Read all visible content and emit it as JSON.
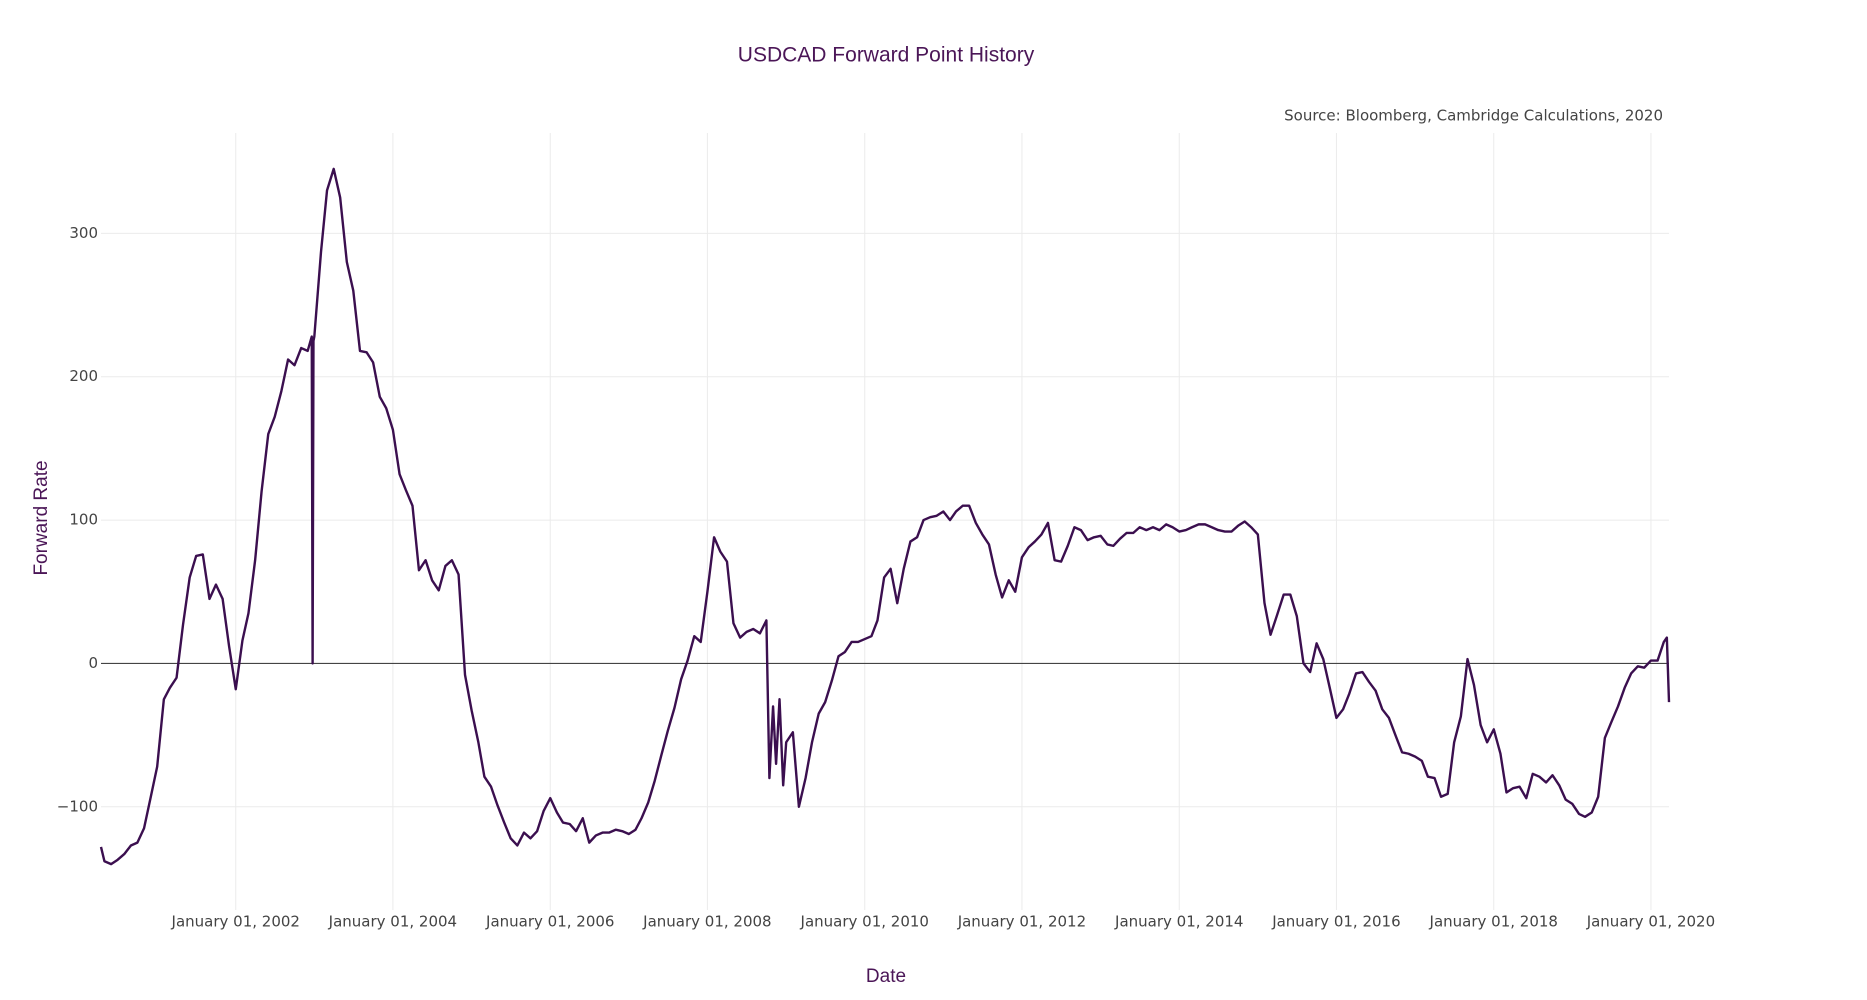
{
  "chart_data": {
    "type": "line",
    "title": "USDCAD Forward Point History",
    "annotation": "Source: Bloomberg, Cambridge Calculations, 2020",
    "x_label": "Date",
    "y_label": "Forward Rate",
    "color": "#3b0f4f",
    "grid": true,
    "zeroline": true,
    "xlim": [
      "2000-04-15",
      "2020-03-25"
    ],
    "ylim": [
      -172,
      370
    ],
    "yticks": [
      {
        "value": -100,
        "label": "−100"
      },
      0,
      100,
      200,
      300
    ],
    "xticks": [
      {
        "value": "2002-01-01",
        "label": "January 01, 2002"
      },
      {
        "value": "2004-01-01",
        "label": "January 01, 2004"
      },
      {
        "value": "2006-01-01",
        "label": "January 01, 2006"
      },
      {
        "value": "2008-01-01",
        "label": "January 01, 2008"
      },
      {
        "value": "2010-01-01",
        "label": "January 01, 2010"
      },
      {
        "value": "2012-01-01",
        "label": "January 01, 2012"
      },
      {
        "value": "2014-01-01",
        "label": "January 01, 2014"
      },
      {
        "value": "2016-01-01",
        "label": "January 01, 2016"
      },
      {
        "value": "2018-01-01",
        "label": "January 01, 2018"
      },
      {
        "value": "2020-01-01",
        "label": "January 01, 2020"
      }
    ],
    "x": [
      "2000-04-15",
      "2000-05-01",
      "2000-06-01",
      "2000-07-01",
      "2000-08-01",
      "2000-09-01",
      "2000-10-01",
      "2000-11-01",
      "2000-12-01",
      "2001-01-01",
      "2001-02-01",
      "2001-03-01",
      "2001-04-01",
      "2001-05-01",
      "2001-06-01",
      "2001-07-01",
      "2001-08-01",
      "2001-09-01",
      "2001-10-01",
      "2001-11-01",
      "2001-12-01",
      "2002-01-01",
      "2002-02-01",
      "2002-03-01",
      "2002-04-01",
      "2002-05-01",
      "2002-06-01",
      "2002-07-01",
      "2002-08-01",
      "2002-09-01",
      "2002-10-01",
      "2002-11-01",
      "2002-12-01",
      "2002-12-20",
      "2002-12-24",
      "2002-12-28",
      "2003-01-01",
      "2003-02-01",
      "2003-03-01",
      "2003-04-01",
      "2003-05-01",
      "2003-06-01",
      "2003-07-01",
      "2003-08-01",
      "2003-09-01",
      "2003-10-01",
      "2003-11-01",
      "2003-12-01",
      "2004-01-01",
      "2004-02-01",
      "2004-03-01",
      "2004-04-01",
      "2004-05-01",
      "2004-06-01",
      "2004-07-01",
      "2004-08-01",
      "2004-09-01",
      "2004-10-01",
      "2004-11-01",
      "2004-12-01",
      "2005-01-01",
      "2005-02-01",
      "2005-03-01",
      "2005-04-01",
      "2005-05-01",
      "2005-06-01",
      "2005-07-01",
      "2005-08-01",
      "2005-09-01",
      "2005-10-01",
      "2005-11-01",
      "2005-12-01",
      "2006-01-01",
      "2006-02-01",
      "2006-03-01",
      "2006-04-01",
      "2006-05-01",
      "2006-06-01",
      "2006-07-01",
      "2006-08-01",
      "2006-09-01",
      "2006-10-01",
      "2006-11-01",
      "2006-12-01",
      "2007-01-01",
      "2007-02-01",
      "2007-03-01",
      "2007-04-01",
      "2007-05-01",
      "2007-06-01",
      "2007-07-01",
      "2007-08-01",
      "2007-09-01",
      "2007-10-01",
      "2007-11-01",
      "2007-12-01",
      "2008-01-01",
      "2008-02-01",
      "2008-03-01",
      "2008-04-01",
      "2008-05-01",
      "2008-06-01",
      "2008-07-01",
      "2008-08-01",
      "2008-09-01",
      "2008-10-01",
      "2008-10-15",
      "2008-11-01",
      "2008-11-15",
      "2008-12-01",
      "2008-12-18",
      "2009-01-01",
      "2009-02-01",
      "2009-03-01",
      "2009-04-01",
      "2009-05-01",
      "2009-06-01",
      "2009-07-01",
      "2009-08-01",
      "2009-09-01",
      "2009-10-01",
      "2009-11-01",
      "2009-12-01",
      "2010-01-01",
      "2010-02-01",
      "2010-03-01",
      "2010-04-01",
      "2010-05-01",
      "2010-06-01",
      "2010-07-01",
      "2010-08-01",
      "2010-09-01",
      "2010-10-01",
      "2010-11-01",
      "2010-12-01",
      "2011-01-01",
      "2011-02-01",
      "2011-03-01",
      "2011-04-01",
      "2011-05-01",
      "2011-06-01",
      "2011-07-01",
      "2011-08-01",
      "2011-09-01",
      "2011-10-01",
      "2011-11-01",
      "2011-12-01",
      "2012-01-01",
      "2012-02-01",
      "2012-03-01",
      "2012-04-01",
      "2012-05-01",
      "2012-06-01",
      "2012-07-01",
      "2012-08-01",
      "2012-09-01",
      "2012-10-01",
      "2012-11-01",
      "2012-12-01",
      "2013-01-01",
      "2013-02-01",
      "2013-03-01",
      "2013-04-01",
      "2013-05-01",
      "2013-06-01",
      "2013-07-01",
      "2013-08-01",
      "2013-09-01",
      "2013-10-01",
      "2013-11-01",
      "2013-12-01",
      "2014-01-01",
      "2014-02-01",
      "2014-03-01",
      "2014-04-01",
      "2014-05-01",
      "2014-06-01",
      "2014-07-01",
      "2014-08-01",
      "2014-09-01",
      "2014-10-01",
      "2014-11-01",
      "2014-12-01",
      "2015-01-01",
      "2015-02-01",
      "2015-03-01",
      "2015-04-01",
      "2015-05-01",
      "2015-06-01",
      "2015-07-01",
      "2015-08-01",
      "2015-09-01",
      "2015-10-01",
      "2015-11-01",
      "2015-12-01",
      "2016-01-01",
      "2016-02-01",
      "2016-03-01",
      "2016-04-01",
      "2016-05-01",
      "2016-06-01",
      "2016-07-01",
      "2016-08-01",
      "2016-09-01",
      "2016-10-01",
      "2016-11-01",
      "2016-12-01",
      "2017-01-01",
      "2017-02-01",
      "2017-03-01",
      "2017-04-01",
      "2017-05-01",
      "2017-06-01",
      "2017-07-01",
      "2017-08-01",
      "2017-09-01",
      "2017-10-01",
      "2017-11-01",
      "2017-12-01",
      "2018-01-01",
      "2018-02-01",
      "2018-03-01",
      "2018-04-01",
      "2018-05-01",
      "2018-06-01",
      "2018-07-01",
      "2018-08-01",
      "2018-09-01",
      "2018-10-01",
      "2018-11-01",
      "2018-12-01",
      "2019-01-01",
      "2019-02-01",
      "2019-03-01",
      "2019-04-01",
      "2019-05-01",
      "2019-06-01",
      "2019-07-01",
      "2019-08-01",
      "2019-09-01",
      "2019-10-01",
      "2019-11-01",
      "2019-12-01",
      "2020-01-01",
      "2020-02-01",
      "2020-03-01",
      "2020-03-15",
      "2020-03-25"
    ],
    "values": [
      -128,
      -138,
      -140,
      -137,
      -133,
      -127,
      -125,
      -115,
      -94,
      -72,
      -25,
      -17,
      -10,
      27,
      60,
      75,
      76,
      45,
      55,
      45,
      12,
      -18,
      16,
      35,
      72,
      120,
      160,
      172,
      190,
      212,
      208,
      220,
      218,
      228,
      0,
      225,
      228,
      287,
      330,
      345,
      325,
      280,
      260,
      218,
      217,
      210,
      186,
      178,
      163,
      132,
      121,
      110,
      65,
      72,
      58,
      51,
      68,
      72,
      62,
      -8,
      -33,
      -55,
      -79,
      -86,
      -99,
      -111,
      -122,
      -127,
      -118,
      -122,
      -117,
      -103,
      -94,
      -104,
      -111,
      -112,
      -117,
      -108,
      -125,
      -120,
      -118,
      -118,
      -116,
      -117,
      -119,
      -116,
      -108,
      -97,
      -82,
      -64,
      -47,
      -31,
      -11,
      2,
      19,
      15,
      50,
      88,
      78,
      71,
      28,
      18,
      22,
      24,
      21,
      30,
      -80,
      -30,
      -70,
      -25,
      -85,
      -55,
      -48,
      -100,
      -80,
      -55,
      -35,
      -27,
      -12,
      5,
      8,
      15,
      15,
      17,
      19,
      30,
      60,
      66,
      42,
      66,
      85,
      88,
      100,
      102,
      103,
      106,
      100,
      106,
      110,
      110,
      98,
      90,
      83,
      62,
      46,
      58,
      50,
      74,
      81,
      85,
      90,
      98,
      72,
      71,
      82,
      95,
      93,
      86,
      88,
      89,
      83,
      82,
      87,
      91,
      91,
      95,
      93,
      95,
      93,
      97,
      95,
      92,
      93,
      95,
      97,
      97,
      95,
      93,
      92,
      92,
      96,
      99,
      95,
      90,
      42,
      20,
      34,
      48,
      48,
      33,
      0,
      -6,
      14,
      3,
      -17,
      -38,
      -32,
      -21,
      -7,
      -6,
      -13,
      -19,
      -32,
      -38,
      -50,
      -62,
      -63,
      -65,
      -68,
      -79,
      -80,
      -93,
      -91,
      -55,
      -37,
      3,
      -15,
      -43,
      -55,
      -46,
      -63,
      -90,
      -87,
      -86,
      -94,
      -77,
      -79,
      -83,
      -78,
      -85,
      -95,
      -98,
      -105,
      -107,
      -104,
      -93,
      -52,
      -41,
      -30,
      -17,
      -7,
      -2,
      -3,
      2,
      2,
      15,
      18,
      -27
    ]
  }
}
